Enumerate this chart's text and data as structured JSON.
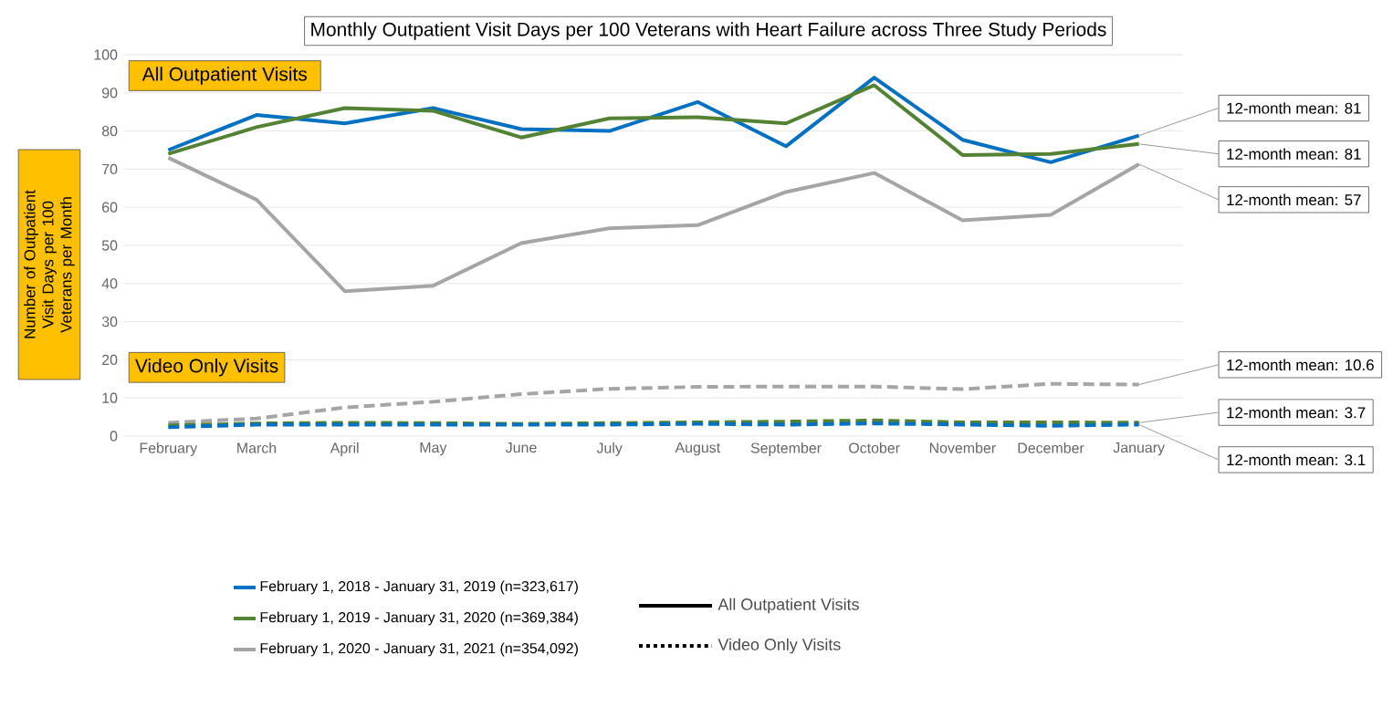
{
  "chart_data": {
    "type": "line",
    "title": "Monthly Outpatient Visit Days per 100 Veterans with Heart Failure across Three Study Periods",
    "ylabel": "Number of Outpatient Visit Days per 100 Veterans per Month",
    "categories": [
      "February",
      "March",
      "April",
      "May",
      "June",
      "July",
      "August",
      "September",
      "October",
      "November",
      "December",
      "January"
    ],
    "series": [
      {
        "name": "February 1, 2018 - January 31, 2019 (n=323,617)",
        "color": "#0070c0",
        "line_style": "solid",
        "values": [
          75,
          84.2,
          82,
          86,
          80.5,
          80,
          87.6,
          76,
          94,
          77.7,
          71.8,
          78.8
        ]
      },
      {
        "name": "February 1, 2019 - January 31, 2020 (n=369,384)",
        "color": "#548235",
        "line_style": "solid",
        "values": [
          74,
          81,
          86,
          85.3,
          78.3,
          83.3,
          83.6,
          82,
          92,
          73.7,
          74,
          76.6
        ]
      },
      {
        "name": "February 1, 2020 - January 31, 2021 (n=354,092)",
        "color": "#a5a5a5",
        "line_style": "solid",
        "values": [
          73,
          62,
          38,
          39.4,
          50.6,
          54.5,
          55.3,
          64,
          69,
          56.6,
          58,
          71.3
        ]
      },
      {
        "color": "#a5a5a5",
        "line_style": "dashed",
        "values": [
          3.5,
          4.6,
          7.5,
          9,
          11,
          12.4,
          12.9,
          13,
          13,
          12.3,
          13.7,
          13.5
        ]
      },
      {
        "color": "#548235",
        "line_style": "dashed",
        "values": [
          2.8,
          3.3,
          3.5,
          3.4,
          3.2,
          3.4,
          3.6,
          3.8,
          4.1,
          3.6,
          3.6,
          3.5
        ]
      },
      {
        "color": "#0070c0",
        "line_style": "dashed",
        "values": [
          2.3,
          3,
          3,
          3,
          3,
          3,
          3.2,
          3,
          3.3,
          3,
          2.7,
          3
        ]
      }
    ],
    "ylim": [
      0,
      100
    ],
    "yticks": [
      0,
      10,
      20,
      30,
      40,
      50,
      60,
      70,
      80,
      90,
      100
    ],
    "grid": "y",
    "legend": "bottom",
    "annotations": [
      "All Outpatient Visits",
      "Video Only Visits",
      "All Outpatient Visits",
      "Video Only Visits",
      {
        "text": "12-month mean: 81",
        "x": "January",
        "y": 78.8
      },
      {
        "text": "12-month mean: 81",
        "x": "January",
        "y": 76.6
      },
      {
        "text": "12-month mean: 57",
        "x": "January",
        "y": 71.3
      },
      {
        "text": "12-month mean: 10.6",
        "x": "January",
        "y": 13.5
      },
      {
        "text": "12-month mean: 3.7",
        "x": "January",
        "y": 3.5
      },
      {
        "text": "12-month mean: 3.1",
        "x": "January",
        "y": 3
      }
    ]
  }
}
